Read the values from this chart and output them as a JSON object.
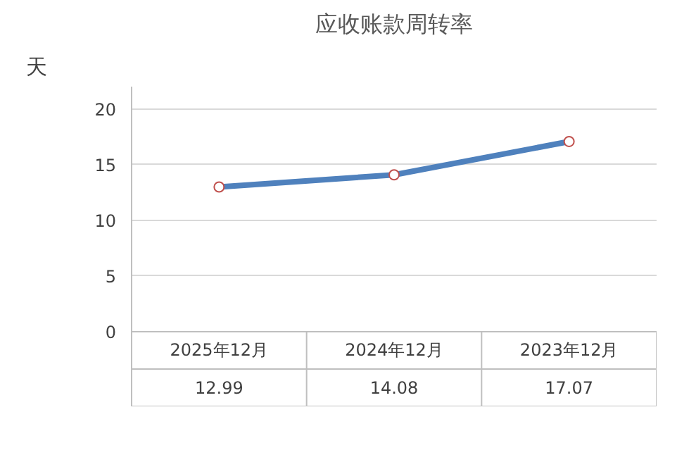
{
  "chart_data": {
    "type": "line",
    "title": "应收账款周转率",
    "ylabel": "天",
    "categories": [
      "2025年12月",
      "2024年12月",
      "2023年12月"
    ],
    "series": [
      {
        "color": "#4f81bd",
        "values": [
          12.99,
          14.08,
          17.07
        ]
      }
    ],
    "ylim": [
      0,
      22
    ],
    "yticks": [
      0,
      5,
      10,
      15,
      20
    ],
    "grid": "y",
    "marker": "circle",
    "data_labels": true
  }
}
